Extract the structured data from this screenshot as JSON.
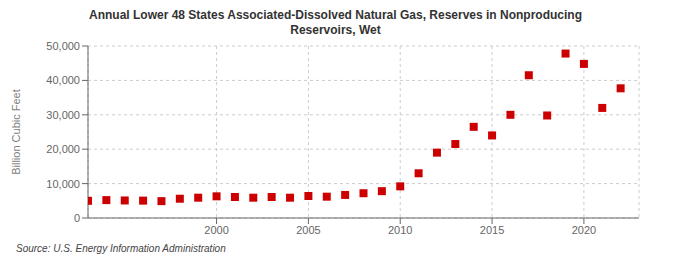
{
  "chart_data": {
    "type": "scatter",
    "title": "Annual Lower 48 States Associated-Dissolved Natural Gas, Reserves in Nonproducing\nReservoirs, Wet",
    "ylabel": "Billion Cubic Feet",
    "annotation": "Source: U.S. Energy Information Administration",
    "x": [
      1993,
      1994,
      1995,
      1996,
      1997,
      1998,
      1999,
      2000,
      2001,
      2002,
      2003,
      2004,
      2005,
      2006,
      2007,
      2008,
      2009,
      2010,
      2011,
      2012,
      2013,
      2014,
      2015,
      2016,
      2017,
      2018,
      2019,
      2020,
      2021,
      2022
    ],
    "values": [
      5000,
      5200,
      5100,
      5050,
      4900,
      5600,
      5900,
      6300,
      6100,
      5900,
      6100,
      5900,
      6400,
      6200,
      6700,
      7200,
      7800,
      9200,
      13000,
      19000,
      21500,
      26500,
      24000,
      30000,
      41500,
      29800,
      47800,
      44800,
      32000,
      37700
    ],
    "color": "#cc0000",
    "marker": "square",
    "xlim": [
      1993,
      2023
    ],
    "xticks": [
      2000,
      2005,
      2010,
      2015,
      2020
    ],
    "ylim": [
      0,
      50000
    ],
    "yticks": [
      0,
      {
        "value": 10000,
        "label": "10,000"
      },
      {
        "value": 20000,
        "label": "20,000"
      },
      {
        "value": 30000,
        "label": "30,000"
      },
      {
        "value": 40000,
        "label": "40,000"
      },
      {
        "value": 50000,
        "label": "50,000"
      }
    ],
    "grid": true
  }
}
